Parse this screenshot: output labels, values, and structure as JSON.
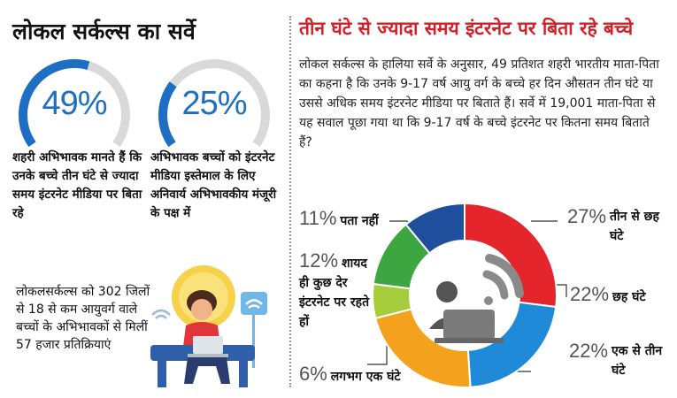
{
  "left": {
    "title": "लोकल सर्कल्स का सर्वे",
    "stats": [
      {
        "value": "49%",
        "fraction": 0.49,
        "text": "शहरी अभिभावक मानते हैं कि उनके बच्चे तीन घंटे से ज्यादा समय इंटरनेट मीडिया पर बिता रहे"
      },
      {
        "value": "25%",
        "fraction": 0.25,
        "text": "अभिभावक बच्चों को इंटरनेट मीडिया इस्तेमाल के लिए अनिवार्य अभिभावकीय मंजूरी के पक्ष में"
      }
    ],
    "note": "लोकलसर्कल्स को 302 जिलों से 18 से कम आयुवर्ग वाले बच्चों के अभिभावकों से मिलीं 57 हजार प्रतिक्रियाएं"
  },
  "right": {
    "title": "तीन घंटे से ज्यादा समय इंटरनेट पर बिता रहे बच्चे",
    "paragraph": "लोकल सर्कल्स के हालिया सर्वे के अनुसार, 49 प्रतिशत शहरी भारतीय माता-पिता का कहना है कि उनके 9-17 वर्ष आयु वर्ग के बच्चे हर दिन औसतन तीन घंटे या उससे अधिक समय इंटरनेट मीडिया पर बिताते हैं। सर्वे में 19,001 माता-पिता से यह सवाल पूछा गया था कि 9-17 वर्ष के बच्चे इंटरनेट पर कितना समय बिताते हैं?"
  },
  "colors": {
    "accent_blue": "#1d6fc4",
    "title_red": "#d51f26",
    "ring_grey": "#d9d9d9"
  },
  "chart_data": {
    "type": "pie",
    "variant": "donut",
    "slices": [
      {
        "label": "तीन से छह घंटे",
        "value": 27,
        "display": "27%",
        "color": "#e4262c"
      },
      {
        "label": "छह घंटे",
        "value": 22,
        "display": "22%",
        "color": "#1f8ad8"
      },
      {
        "label": "एक से तीन घंटे",
        "value": 22,
        "display": "22%",
        "color": "#f4a21d"
      },
      {
        "label": "लगभग एक घंटे",
        "value": 6,
        "display": "6%",
        "color": "#a7cc3b"
      },
      {
        "label": "शायद ही कुछ देर इंटरनेट पर रहते हों",
        "value": 12,
        "display": "12%",
        "color": "#3ea640"
      },
      {
        "label": "पता नहीं",
        "value": 11,
        "display": "11%",
        "color": "#1f4e9c"
      }
    ],
    "center_icon": "wifi-laptop-user-icon"
  }
}
